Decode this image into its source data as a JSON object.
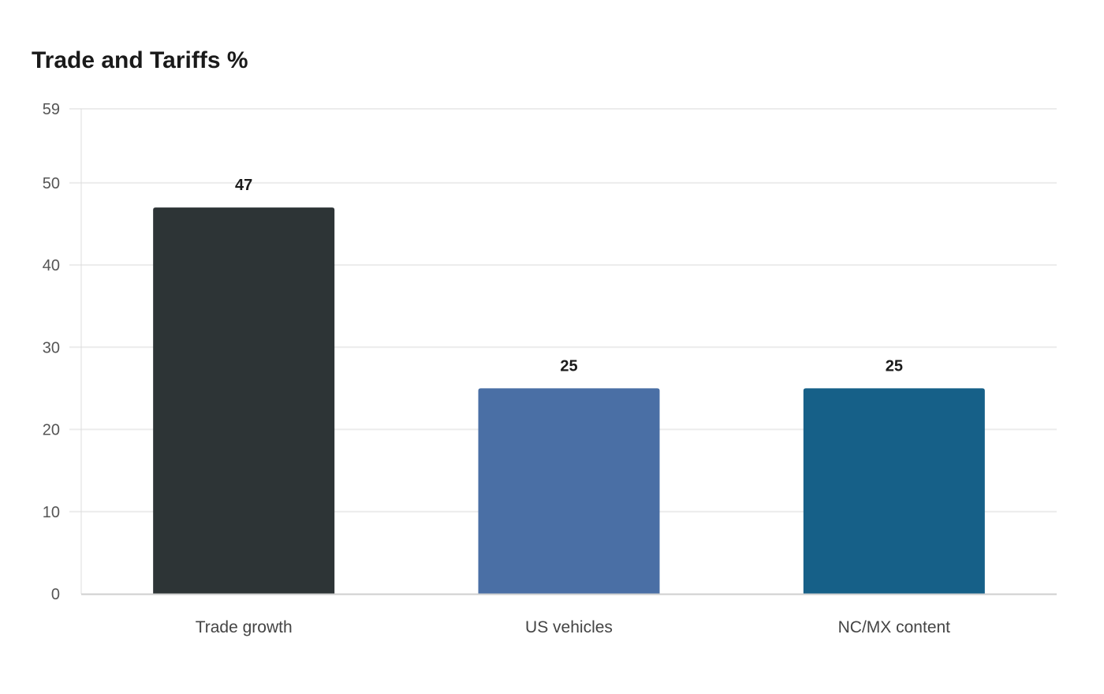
{
  "chart_data": {
    "type": "bar",
    "title": "Trade and Tariffs %",
    "xlabel": "",
    "ylabel": "",
    "categories": [
      "Trade growth",
      "US vehicles",
      "NC/MX content"
    ],
    "values": [
      47,
      25,
      25
    ],
    "colors": [
      "#2d3436",
      "#4a6fa5",
      "#166088"
    ],
    "ylim": [
      0,
      59
    ],
    "yticks": [
      0,
      10,
      20,
      30,
      40,
      50,
      59
    ],
    "grid": true,
    "data_labels": true
  }
}
